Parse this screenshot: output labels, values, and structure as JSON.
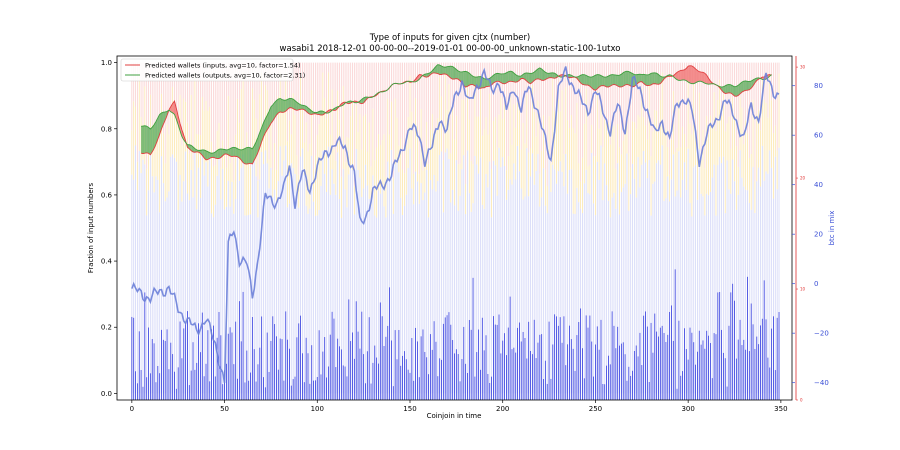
{
  "chart_data": {
    "type": "bar",
    "title": "Type of inputs for given cjtx (number)",
    "subtitle": "wasabi1 2018-12-01 00-00-00--2019-01-01 00-00-00_unknown-static-100-1utxo",
    "xlabel": "Coinjoin in time",
    "ylabel": "Fraction of input numbers",
    "y2label": "btc in mix",
    "xlim": [
      -8,
      356
    ],
    "ylim": [
      -0.02,
      1.02
    ],
    "y2lim": [
      -47,
      92
    ],
    "y3lim": [
      0,
      31
    ],
    "xticks": [
      0,
      50,
      100,
      150,
      200,
      250,
      300,
      350
    ],
    "yticks": [
      0.0,
      0.2,
      0.4,
      0.6,
      0.8,
      1.0
    ],
    "y2ticks": [
      -40,
      -20,
      0,
      20,
      40,
      60,
      80
    ],
    "y3ticks": [
      0,
      10,
      20,
      30
    ],
    "n_coinjoins": 350,
    "legend": {
      "placement": "top-left",
      "entries": [
        {
          "label": "Predicted wallets (inputs, avg=10, factor=1.54)",
          "color": "#e04040"
        },
        {
          "label": "Predicted wallets (outputs, avg=10, factor=2.31)",
          "color": "#40a040"
        }
      ]
    },
    "colors": {
      "fresh_inputs": "#c5c9f5",
      "remix_inputs": "#fbe3a2",
      "other_inputs": "#f8c4c4",
      "btc_in_mix": "#6b7fd8",
      "inputs_wallets": "#e04040",
      "outputs_wallets": "#40a040",
      "fill_red": "#f07070",
      "fill_green": "#5cac5c"
    },
    "btc_in_mix_keypoints": [
      [
        0,
        -2
      ],
      [
        5,
        -4
      ],
      [
        10,
        -6
      ],
      [
        15,
        -3
      ],
      [
        20,
        -2
      ],
      [
        25,
        -10
      ],
      [
        30,
        -15
      ],
      [
        35,
        -19
      ],
      [
        40,
        -14
      ],
      [
        45,
        -25
      ],
      [
        48,
        -33
      ],
      [
        50,
        -40
      ],
      [
        52,
        15
      ],
      [
        55,
        22
      ],
      [
        58,
        10
      ],
      [
        62,
        8
      ],
      [
        65,
        -5
      ],
      [
        68,
        10
      ],
      [
        72,
        35
      ],
      [
        78,
        33
      ],
      [
        82,
        38
      ],
      [
        85,
        48
      ],
      [
        88,
        33
      ],
      [
        92,
        45
      ],
      [
        96,
        38
      ],
      [
        100,
        47
      ],
      [
        105,
        53
      ],
      [
        110,
        57
      ],
      [
        115,
        55
      ],
      [
        120,
        45
      ],
      [
        123,
        24
      ],
      [
        126,
        27
      ],
      [
        130,
        37
      ],
      [
        135,
        40
      ],
      [
        140,
        44
      ],
      [
        145,
        53
      ],
      [
        150,
        63
      ],
      [
        155,
        60
      ],
      [
        158,
        50
      ],
      [
        162,
        55
      ],
      [
        166,
        67
      ],
      [
        170,
        62
      ],
      [
        174,
        75
      ],
      [
        178,
        82
      ],
      [
        182,
        72
      ],
      [
        186,
        80
      ],
      [
        190,
        85
      ],
      [
        194,
        78
      ],
      [
        198,
        82
      ],
      [
        202,
        70
      ],
      [
        206,
        80
      ],
      [
        210,
        70
      ],
      [
        214,
        80
      ],
      [
        218,
        72
      ],
      [
        222,
        60
      ],
      [
        226,
        50
      ],
      [
        230,
        78
      ],
      [
        234,
        86
      ],
      [
        238,
        80
      ],
      [
        242,
        74
      ],
      [
        246,
        70
      ],
      [
        250,
        78
      ],
      [
        254,
        70
      ],
      [
        258,
        62
      ],
      [
        262,
        72
      ],
      [
        266,
        62
      ],
      [
        270,
        82
      ],
      [
        274,
        78
      ],
      [
        278,
        70
      ],
      [
        282,
        60
      ],
      [
        286,
        66
      ],
      [
        290,
        58
      ],
      [
        294,
        73
      ],
      [
        298,
        75
      ],
      [
        302,
        70
      ],
      [
        306,
        50
      ],
      [
        310,
        60
      ],
      [
        315,
        66
      ],
      [
        320,
        74
      ],
      [
        325,
        68
      ],
      [
        330,
        58
      ],
      [
        334,
        72
      ],
      [
        338,
        66
      ],
      [
        342,
        84
      ],
      [
        346,
        78
      ],
      [
        349,
        76
      ]
    ],
    "inputs_wallets_keypoints": [
      [
        5,
        0.73
      ],
      [
        10,
        0.72
      ],
      [
        15,
        0.78
      ],
      [
        20,
        0.86
      ],
      [
        23,
        0.88
      ],
      [
        27,
        0.8
      ],
      [
        30,
        0.74
      ],
      [
        35,
        0.73
      ],
      [
        40,
        0.71
      ],
      [
        45,
        0.71
      ],
      [
        50,
        0.72
      ],
      [
        55,
        0.72
      ],
      [
        60,
        0.7
      ],
      [
        65,
        0.69
      ],
      [
        70,
        0.76
      ],
      [
        75,
        0.82
      ],
      [
        80,
        0.85
      ],
      [
        85,
        0.86
      ],
      [
        90,
        0.86
      ],
      [
        95,
        0.85
      ],
      [
        100,
        0.84
      ],
      [
        105,
        0.85
      ],
      [
        110,
        0.86
      ],
      [
        115,
        0.88
      ],
      [
        120,
        0.88
      ],
      [
        125,
        0.88
      ],
      [
        130,
        0.9
      ],
      [
        135,
        0.91
      ],
      [
        140,
        0.93
      ],
      [
        145,
        0.94
      ],
      [
        150,
        0.94
      ],
      [
        155,
        0.96
      ],
      [
        160,
        0.96
      ],
      [
        165,
        0.97
      ],
      [
        170,
        0.96
      ],
      [
        175,
        0.95
      ],
      [
        180,
        0.93
      ],
      [
        185,
        0.93
      ],
      [
        190,
        0.92
      ],
      [
        195,
        0.94
      ],
      [
        200,
        0.94
      ],
      [
        205,
        0.94
      ],
      [
        210,
        0.95
      ],
      [
        215,
        0.94
      ],
      [
        220,
        0.95
      ],
      [
        225,
        0.95
      ],
      [
        230,
        0.96
      ],
      [
        235,
        0.96
      ],
      [
        240,
        0.95
      ],
      [
        245,
        0.93
      ],
      [
        250,
        0.92
      ],
      [
        255,
        0.93
      ],
      [
        260,
        0.93
      ],
      [
        265,
        0.93
      ],
      [
        270,
        0.93
      ],
      [
        275,
        0.94
      ],
      [
        280,
        0.93
      ],
      [
        285,
        0.94
      ],
      [
        290,
        0.96
      ],
      [
        295,
        0.97
      ],
      [
        300,
        0.99
      ],
      [
        305,
        0.98
      ],
      [
        310,
        0.96
      ],
      [
        315,
        0.93
      ],
      [
        320,
        0.91
      ],
      [
        325,
        0.9
      ],
      [
        330,
        0.91
      ],
      [
        335,
        0.93
      ],
      [
        340,
        0.96
      ],
      [
        345,
        0.96
      ]
    ],
    "outputs_wallets_keypoints": [
      [
        5,
        0.81
      ],
      [
        10,
        0.8
      ],
      [
        15,
        0.84
      ],
      [
        20,
        0.86
      ],
      [
        23,
        0.84
      ],
      [
        27,
        0.78
      ],
      [
        30,
        0.75
      ],
      [
        35,
        0.74
      ],
      [
        40,
        0.73
      ],
      [
        45,
        0.73
      ],
      [
        50,
        0.74
      ],
      [
        55,
        0.74
      ],
      [
        60,
        0.74
      ],
      [
        65,
        0.74
      ],
      [
        70,
        0.8
      ],
      [
        75,
        0.87
      ],
      [
        80,
        0.89
      ],
      [
        85,
        0.89
      ],
      [
        90,
        0.88
      ],
      [
        95,
        0.86
      ],
      [
        100,
        0.85
      ],
      [
        105,
        0.85
      ],
      [
        110,
        0.86
      ],
      [
        115,
        0.88
      ],
      [
        120,
        0.88
      ],
      [
        125,
        0.89
      ],
      [
        130,
        0.9
      ],
      [
        135,
        0.91
      ],
      [
        140,
        0.93
      ],
      [
        145,
        0.94
      ],
      [
        150,
        0.94
      ],
      [
        155,
        0.95
      ],
      [
        160,
        0.97
      ],
      [
        165,
        0.99
      ],
      [
        170,
        0.99
      ],
      [
        175,
        0.98
      ],
      [
        180,
        0.97
      ],
      [
        185,
        0.96
      ],
      [
        190,
        0.95
      ],
      [
        195,
        0.96
      ],
      [
        200,
        0.97
      ],
      [
        205,
        0.97
      ],
      [
        210,
        0.96
      ],
      [
        215,
        0.97
      ],
      [
        220,
        0.98
      ],
      [
        225,
        0.97
      ],
      [
        230,
        0.96
      ],
      [
        235,
        0.96
      ],
      [
        240,
        0.96
      ],
      [
        245,
        0.96
      ],
      [
        250,
        0.96
      ],
      [
        255,
        0.96
      ],
      [
        260,
        0.96
      ],
      [
        265,
        0.97
      ],
      [
        270,
        0.97
      ],
      [
        275,
        0.96
      ],
      [
        280,
        0.97
      ],
      [
        285,
        0.96
      ],
      [
        290,
        0.96
      ],
      [
        295,
        0.95
      ],
      [
        300,
        0.94
      ],
      [
        305,
        0.94
      ],
      [
        310,
        0.94
      ],
      [
        315,
        0.93
      ],
      [
        320,
        0.93
      ],
      [
        325,
        0.93
      ],
      [
        330,
        0.94
      ],
      [
        335,
        0.95
      ],
      [
        340,
        0.95
      ],
      [
        345,
        0.96
      ]
    ]
  }
}
